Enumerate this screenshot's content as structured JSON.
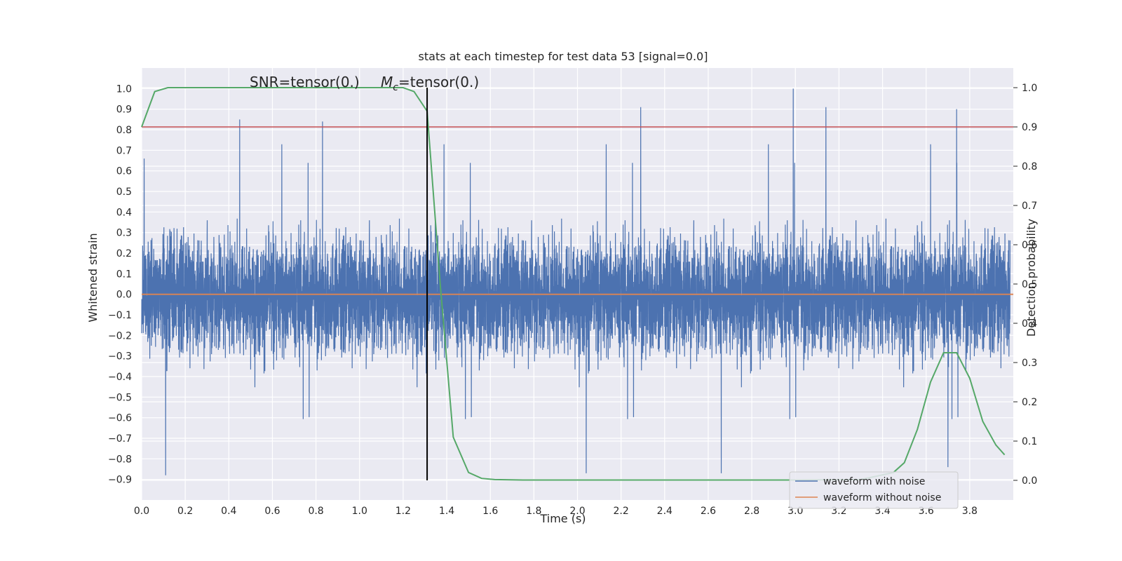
{
  "chart_data": {
    "type": "line",
    "title": "stats at each timestep for test data 53 [signal=0.0]",
    "xlabel": "Time (s)",
    "ylabel": "Whitened strain",
    "y2label": "Detection probability",
    "xlim": [
      0.0,
      4.0
    ],
    "ylim": [
      -1.0,
      1.1
    ],
    "y2lim": [
      -0.05,
      1.05
    ],
    "grid": true,
    "background": "#eaeaf2",
    "xticks": [
      0.0,
      0.2,
      0.4,
      0.6,
      0.8,
      1.0,
      1.2,
      1.4,
      1.6,
      1.8,
      2.0,
      2.2,
      2.4,
      2.6,
      2.8,
      3.0,
      3.2,
      3.4,
      3.6,
      3.8
    ],
    "xtick_labels": [
      "0.0",
      "0.2",
      "0.4",
      "0.6",
      "0.8",
      "1.0",
      "1.2",
      "1.4",
      "1.6",
      "1.8",
      "2.0",
      "2.2",
      "2.4",
      "2.6",
      "2.8",
      "3.0",
      "3.2",
      "3.4",
      "3.6",
      "3.8"
    ],
    "yticks": [
      1.0,
      0.9,
      0.8,
      0.7,
      0.6,
      0.5,
      0.4,
      0.3,
      0.2,
      0.1,
      0.0,
      -0.1,
      -0.2,
      -0.3,
      -0.4,
      -0.5,
      -0.6,
      -0.7,
      -0.8,
      -0.9
    ],
    "ytick_labels": [
      "1.0",
      "0.9",
      "0.8",
      "0.7",
      "0.6",
      "0.5",
      "0.4",
      "0.3",
      "0.2",
      "0.1",
      "0.0",
      "−0.1",
      "−0.2",
      "−0.3",
      "−0.4",
      "−0.5",
      "−0.6",
      "−0.7",
      "−0.8",
      "−0.9"
    ],
    "y2ticks": [
      1.0,
      0.9,
      0.8,
      0.7,
      0.6,
      0.5,
      0.4,
      0.3,
      0.2,
      0.1,
      0.0
    ],
    "y2tick_labels": [
      "1.0",
      "0.9",
      "0.8",
      "0.7",
      "0.6",
      "0.5",
      "0.4",
      "0.3",
      "0.2",
      "0.1",
      "0.0"
    ],
    "annotation": {
      "snr_text": "SNR=tensor(0.)",
      "mc_symbol": "M",
      "mc_subscript": "c",
      "mc_value": "=tensor(0.)"
    },
    "vertical_marker_x": 1.31,
    "threshold_y2": 0.9,
    "series": [
      {
        "name": "waveform with noise",
        "color": "#4c72b0",
        "axis": "left",
        "description": "dense whitened-strain noise sampled densely over 0–3.98 s, amplitude roughly within ±0.5 with spikes up to 1.0 and down to −0.88",
        "noise_std": 0.2,
        "spikes": [
          [
            0.45,
            0.85
          ],
          [
            0.83,
            0.84
          ],
          [
            2.29,
            0.91
          ],
          [
            2.99,
            1.0
          ],
          [
            3.14,
            0.91
          ],
          [
            3.74,
            0.9
          ],
          [
            0.11,
            -0.88
          ],
          [
            2.04,
            -0.87
          ],
          [
            2.66,
            -0.87
          ],
          [
            3.7,
            -0.84
          ]
        ]
      },
      {
        "name": "waveform without noise",
        "color": "#dd8452",
        "axis": "left",
        "x": [
          0.0,
          4.0
        ],
        "y": [
          0.0,
          0.0
        ]
      },
      {
        "name": "detection probability",
        "color": "#55a868",
        "axis": "right",
        "x": [
          0.0,
          0.06,
          0.12,
          0.5,
          1.0,
          1.2,
          1.25,
          1.31,
          1.37,
          1.43,
          1.5,
          1.56,
          1.62,
          1.75,
          2.0,
          2.5,
          3.0,
          3.3,
          3.45,
          3.5,
          3.56,
          3.62,
          3.68,
          3.74,
          3.8,
          3.86,
          3.92,
          3.96
        ],
        "y": [
          0.9,
          0.99,
          1.0,
          1.0,
          1.0,
          1.0,
          0.99,
          0.94,
          0.5,
          0.11,
          0.02,
          0.005,
          0.002,
          0.001,
          0.001,
          0.001,
          0.001,
          0.002,
          0.02,
          0.045,
          0.13,
          0.25,
          0.325,
          0.325,
          0.26,
          0.15,
          0.09,
          0.065
        ]
      },
      {
        "name": "threshold",
        "color": "#c44e52",
        "axis": "right",
        "x": [
          0.0,
          4.0
        ],
        "y": [
          0.9,
          0.9
        ]
      }
    ],
    "legend": {
      "placement": "lower-right",
      "entries": [
        {
          "label": "waveform with noise",
          "color": "#4c72b0"
        },
        {
          "label": "waveform without noise",
          "color": "#dd8452"
        }
      ]
    }
  }
}
